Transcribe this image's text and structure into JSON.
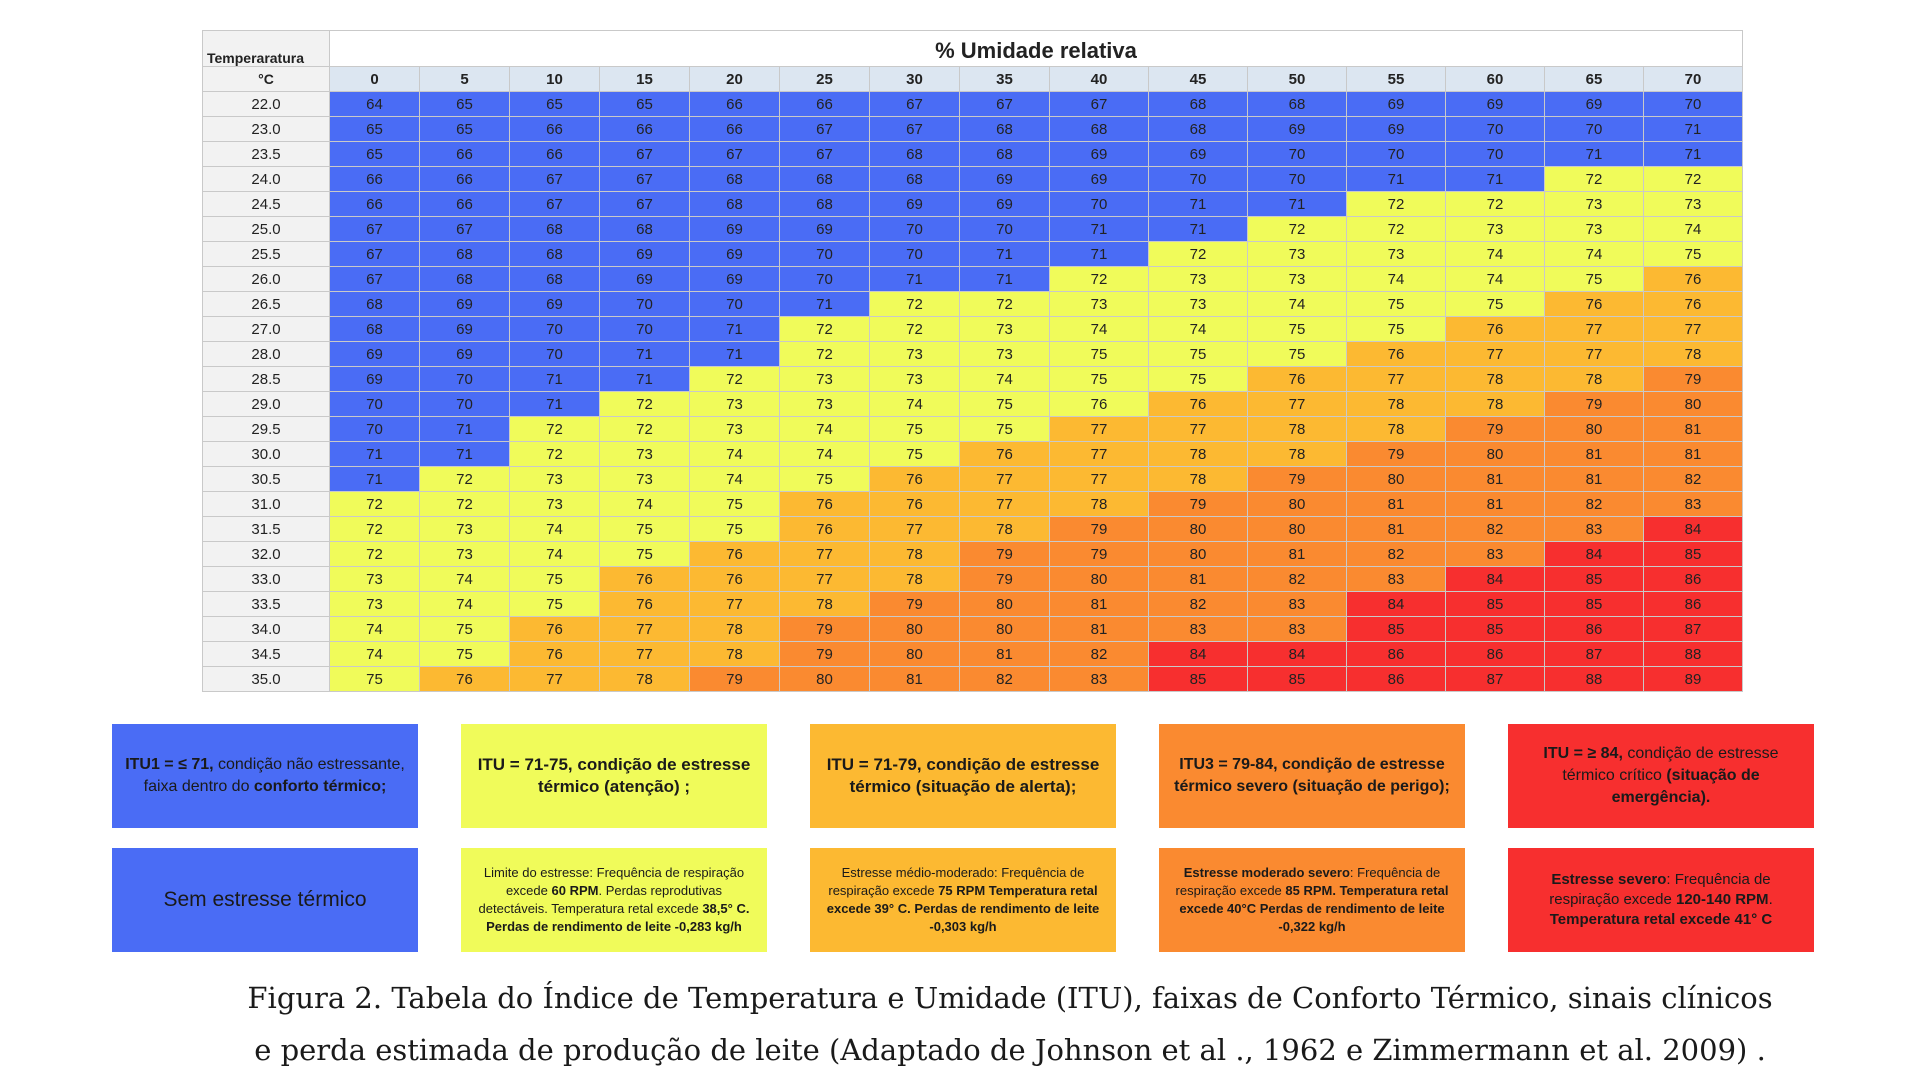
{
  "table": {
    "temp_header": "Temperaratura",
    "temp_unit": "°C",
    "title": "% Umidade relativa",
    "humidity": [
      "0",
      "5",
      "10",
      "15",
      "20",
      "25",
      "30",
      "35",
      "40",
      "45",
      "50",
      "55",
      "60",
      "65",
      "70"
    ],
    "rows": [
      {
        "t": "22.0",
        "v": [
          "64",
          "65",
          "65",
          "65",
          "66",
          "66",
          "67",
          "67",
          "67",
          "68",
          "68",
          "69",
          "69",
          "69",
          "70"
        ]
      },
      {
        "t": "23.0",
        "v": [
          "65",
          "65",
          "66",
          "66",
          "66",
          "67",
          "67",
          "68",
          "68",
          "68",
          "69",
          "69",
          "70",
          "70",
          "71"
        ]
      },
      {
        "t": "23.5",
        "v": [
          "65",
          "66",
          "66",
          "67",
          "67",
          "67",
          "68",
          "68",
          "69",
          "69",
          "70",
          "70",
          "70",
          "71",
          "71"
        ]
      },
      {
        "t": "24.0",
        "v": [
          "66",
          "66",
          "67",
          "67",
          "68",
          "68",
          "68",
          "69",
          "69",
          "70",
          "70",
          "71",
          "71",
          "72",
          "72"
        ]
      },
      {
        "t": "24.5",
        "v": [
          "66",
          "66",
          "67",
          "67",
          "68",
          "68",
          "69",
          "69",
          "70",
          "71",
          "71",
          "72",
          "72",
          "73",
          "73"
        ]
      },
      {
        "t": "25.0",
        "v": [
          "67",
          "67",
          "68",
          "68",
          "69",
          "69",
          "70",
          "70",
          "71",
          "71",
          "72",
          "72",
          "73",
          "73",
          "74"
        ]
      },
      {
        "t": "25.5",
        "v": [
          "67",
          "68",
          "68",
          "69",
          "69",
          "70",
          "70",
          "71",
          "71",
          "72",
          "73",
          "73",
          "74",
          "74",
          "75"
        ]
      },
      {
        "t": "26.0",
        "v": [
          "67",
          "68",
          "68",
          "69",
          "69",
          "70",
          "71",
          "71",
          "72",
          "73",
          "73",
          "74",
          "74",
          "75",
          "76"
        ]
      },
      {
        "t": "26.5",
        "v": [
          "68",
          "69",
          "69",
          "70",
          "70",
          "71",
          "72",
          "72",
          "73",
          "73",
          "74",
          "75",
          "75",
          "76",
          "76"
        ]
      },
      {
        "t": "27.0",
        "v": [
          "68",
          "69",
          "70",
          "70",
          "71",
          "72",
          "72",
          "73",
          "74",
          "74",
          "75",
          "75",
          "76",
          "77",
          "77"
        ]
      },
      {
        "t": "28.0",
        "v": [
          "69",
          "69",
          "70",
          "71",
          "71",
          "72",
          "73",
          "73",
          "75",
          "75",
          "75",
          "76",
          "77",
          "77",
          "78"
        ]
      },
      {
        "t": "28.5",
        "v": [
          "69",
          "70",
          "71",
          "71",
          "72",
          "73",
          "73",
          "74",
          "75",
          "75",
          "76",
          "77",
          "78",
          "78",
          "79"
        ]
      },
      {
        "t": "29.0",
        "v": [
          "70",
          "70",
          "71",
          "72",
          "73",
          "73",
          "74",
          "75",
          "76",
          "76",
          "77",
          "78",
          "78",
          "79",
          "80"
        ]
      },
      {
        "t": "29.5",
        "v": [
          "70",
          "71",
          "72",
          "72",
          "73",
          "74",
          "75",
          "75",
          "77",
          "77",
          "78",
          "78",
          "79",
          "80",
          "81"
        ]
      },
      {
        "t": "30.0",
        "v": [
          "71",
          "71",
          "72",
          "73",
          "74",
          "74",
          "75",
          "76",
          "77",
          "78",
          "78",
          "79",
          "80",
          "81",
          "81"
        ]
      },
      {
        "t": "30.5",
        "v": [
          "71",
          "72",
          "73",
          "73",
          "74",
          "75",
          "76",
          "77",
          "77",
          "78",
          "79",
          "80",
          "81",
          "81",
          "82"
        ]
      },
      {
        "t": "31.0",
        "v": [
          "72",
          "72",
          "73",
          "74",
          "75",
          "76",
          "76",
          "77",
          "78",
          "79",
          "80",
          "81",
          "81",
          "82",
          "83"
        ]
      },
      {
        "t": "31.5",
        "v": [
          "72",
          "73",
          "74",
          "75",
          "75",
          "76",
          "77",
          "78",
          "79",
          "80",
          "80",
          "81",
          "82",
          "83",
          "84"
        ]
      },
      {
        "t": "32.0",
        "v": [
          "72",
          "73",
          "74",
          "75",
          "76",
          "77",
          "78",
          "79",
          "79",
          "80",
          "81",
          "82",
          "83",
          "84",
          "85"
        ]
      },
      {
        "t": "33.0",
        "v": [
          "73",
          "74",
          "75",
          "76",
          "76",
          "77",
          "78",
          "79",
          "80",
          "81",
          "82",
          "83",
          "84",
          "85",
          "86"
        ]
      },
      {
        "t": "33.5",
        "v": [
          "73",
          "74",
          "75",
          "76",
          "77",
          "78",
          "79",
          "80",
          "81",
          "82",
          "83",
          "84",
          "85",
          "85",
          "86"
        ]
      },
      {
        "t": "34.0",
        "v": [
          "74",
          "75",
          "76",
          "77",
          "78",
          "79",
          "80",
          "80",
          "81",
          "83",
          "83",
          "85",
          "85",
          "86",
          "87"
        ]
      },
      {
        "t": "34.5",
        "v": [
          "74",
          "75",
          "76",
          "77",
          "78",
          "79",
          "80",
          "81",
          "82",
          "84",
          "84",
          "86",
          "86",
          "87",
          "88"
        ]
      },
      {
        "t": "35.0",
        "v": [
          "75",
          "76",
          "77",
          "78",
          "79",
          "80",
          "81",
          "82",
          "83",
          "85",
          "85",
          "86",
          "87",
          "88",
          "89"
        ]
      }
    ],
    "bands": [
      [
        0,
        0,
        0,
        0,
        0,
        0,
        0,
        0,
        0,
        0,
        0,
        0,
        0,
        0,
        0
      ],
      [
        0,
        0,
        0,
        0,
        0,
        0,
        0,
        0,
        0,
        0,
        0,
        0,
        0,
        0,
        0
      ],
      [
        0,
        0,
        0,
        0,
        0,
        0,
        0,
        0,
        0,
        0,
        0,
        0,
        0,
        0,
        0
      ],
      [
        0,
        0,
        0,
        0,
        0,
        0,
        0,
        0,
        0,
        0,
        0,
        0,
        0,
        1,
        1
      ],
      [
        0,
        0,
        0,
        0,
        0,
        0,
        0,
        0,
        0,
        0,
        0,
        1,
        1,
        1,
        1
      ],
      [
        0,
        0,
        0,
        0,
        0,
        0,
        0,
        0,
        0,
        0,
        1,
        1,
        1,
        1,
        1
      ],
      [
        0,
        0,
        0,
        0,
        0,
        0,
        0,
        0,
        0,
        1,
        1,
        1,
        1,
        1,
        1
      ],
      [
        0,
        0,
        0,
        0,
        0,
        0,
        0,
        0,
        1,
        1,
        1,
        1,
        1,
        1,
        2
      ],
      [
        0,
        0,
        0,
        0,
        0,
        0,
        1,
        1,
        1,
        1,
        1,
        1,
        1,
        2,
        2
      ],
      [
        0,
        0,
        0,
        0,
        0,
        1,
        1,
        1,
        1,
        1,
        1,
        1,
        2,
        2,
        2
      ],
      [
        0,
        0,
        0,
        0,
        0,
        1,
        1,
        1,
        1,
        1,
        1,
        2,
        2,
        2,
        2
      ],
      [
        0,
        0,
        0,
        0,
        1,
        1,
        1,
        1,
        1,
        1,
        2,
        2,
        2,
        2,
        3
      ],
      [
        0,
        0,
        0,
        1,
        1,
        1,
        1,
        1,
        1,
        2,
        2,
        2,
        2,
        3,
        3
      ],
      [
        0,
        0,
        1,
        1,
        1,
        1,
        1,
        1,
        2,
        2,
        2,
        2,
        3,
        3,
        3
      ],
      [
        0,
        0,
        1,
        1,
        1,
        1,
        1,
        2,
        2,
        2,
        2,
        3,
        3,
        3,
        3
      ],
      [
        0,
        1,
        1,
        1,
        1,
        1,
        2,
        2,
        2,
        2,
        3,
        3,
        3,
        3,
        3
      ],
      [
        1,
        1,
        1,
        1,
        1,
        2,
        2,
        2,
        2,
        3,
        3,
        3,
        3,
        3,
        3
      ],
      [
        1,
        1,
        1,
        1,
        1,
        2,
        2,
        2,
        3,
        3,
        3,
        3,
        3,
        3,
        4
      ],
      [
        1,
        1,
        1,
        1,
        2,
        2,
        2,
        3,
        3,
        3,
        3,
        3,
        3,
        4,
        4
      ],
      [
        1,
        1,
        1,
        2,
        2,
        2,
        2,
        3,
        3,
        3,
        3,
        3,
        4,
        4,
        4
      ],
      [
        1,
        1,
        1,
        2,
        2,
        2,
        3,
        3,
        3,
        3,
        3,
        4,
        4,
        4,
        4
      ],
      [
        1,
        1,
        2,
        2,
        2,
        3,
        3,
        3,
        3,
        3,
        3,
        4,
        4,
        4,
        4
      ],
      [
        1,
        1,
        2,
        2,
        2,
        3,
        3,
        3,
        3,
        4,
        4,
        4,
        4,
        4,
        4
      ],
      [
        1,
        2,
        2,
        2,
        3,
        3,
        3,
        3,
        3,
        4,
        4,
        4,
        4,
        4,
        4
      ]
    ]
  },
  "colors": {
    "blue": "#4a6cf5",
    "yellow": "#f0fb5a",
    "light_orange": "#fcb932",
    "orange": "#fa8a30",
    "red": "#f72f2f",
    "humidity_header": "#dce6f1",
    "temp_column": "#f2f2f2"
  },
  "legend": {
    "itu1": {
      "bold": "ITU1 = ≤ 71,",
      "text": " condição não estressante, faixa dentro do ",
      "bold2": "conforto térmico;"
    },
    "itu_attention": {
      "bold": "ITU = 71-75, condição de estresse térmico (atenção) ;"
    },
    "itu_alert": {
      "bold": "ITU = 71-79, condição de estresse térmico (situação de alerta);"
    },
    "itu3": {
      "bold": "ITU3 = 79-84, condição de estresse térmico severo (situação de perigo);"
    },
    "itu_critical": {
      "bold": "ITU = ≥ 84,",
      "text": " condição de estresse térmico crítico ",
      "bold2": "(situação de emergência)."
    },
    "sem_estresse": "Sem estresse térmico",
    "limite": {
      "text": "Limite do estresse: Frequência de respiração excede ",
      "bold": "60 RPM",
      "text2": ". Perdas reprodutivas detectáveis. Temperatura retal excede ",
      "bold2": "38,5° C. Perdas de rendimento de leite -0,283 kg/h"
    },
    "medio": {
      "text": "Estresse médio-moderado: Frequência de respiração excede ",
      "bold": "75 RPM Temperatura retal excede 39° C. Perdas de rendimento de leite -0,303 kg/h"
    },
    "moderado": {
      "bold": "Estresse moderado severo",
      "text": ": Frequência de respiração excede ",
      "bold2": "85 RPM. Temperatura retal excede 40°C Perdas de rendimento de leite -0,322 kg/h"
    },
    "severo": {
      "bold": "Estresse severo",
      "text": ": Frequência de respiração excede ",
      "bold2": "120-140  RPM",
      "text2": ". ",
      "bold3": "Temperatura retal excede 41° C"
    }
  },
  "caption": {
    "line1": "Figura 2. Tabela do Índice de Temperatura e Umidade (ITU), faixas de Conforto Térmico, sinais clínicos",
    "line2": "e perda estimada de produção de leite (Adaptado de Johnson et al ., 1962 e Zimmermann et al. 2009) ."
  }
}
